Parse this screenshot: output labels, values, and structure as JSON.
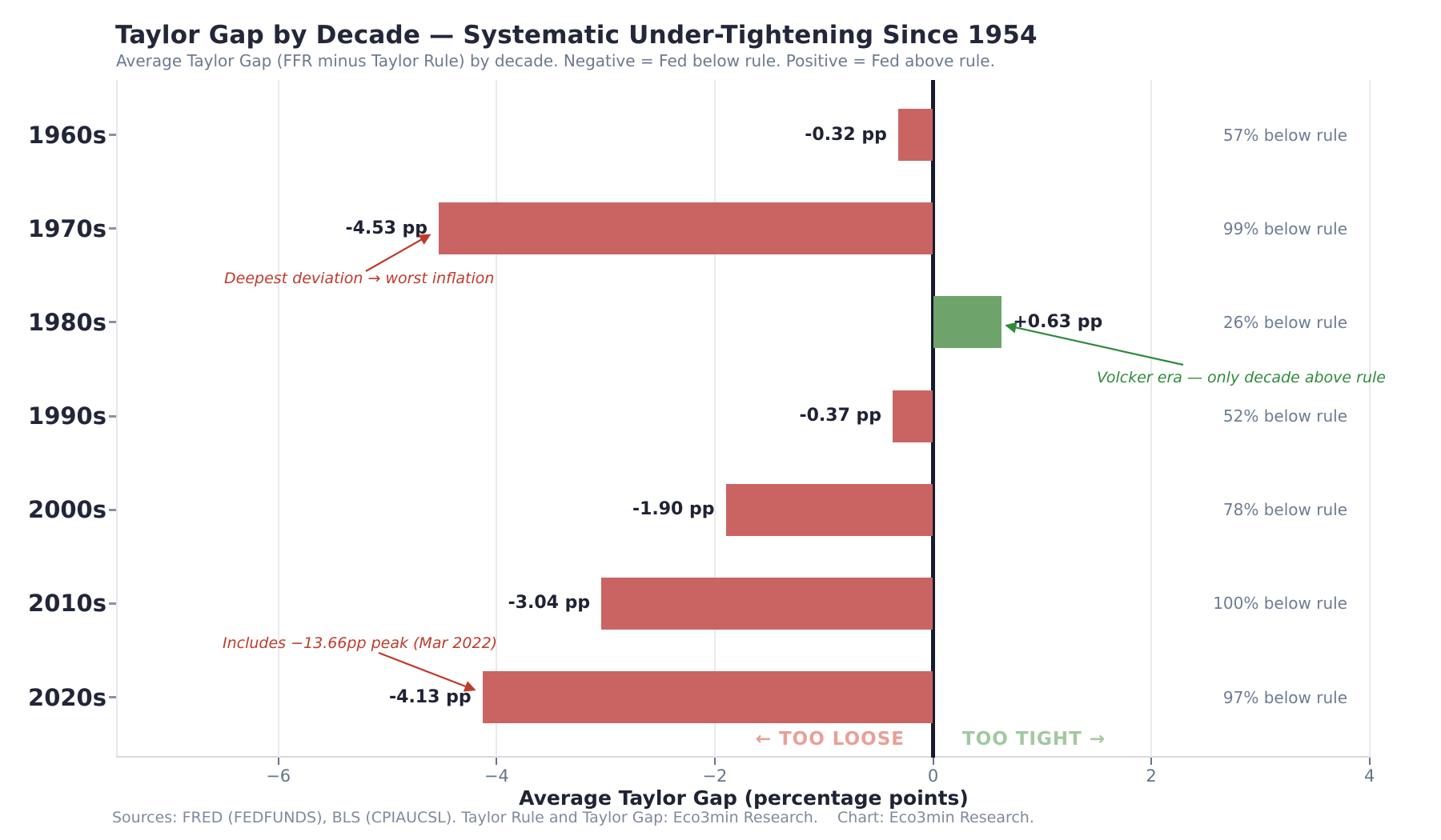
{
  "header": {
    "title": "Taylor Gap by Decade — Systematic Under-Tightening Since 1954",
    "subtitle": "Average Taylor Gap (FFR minus Taylor Rule) by decade. Negative = Fed below rule. Positive = Fed above rule."
  },
  "chart_data": {
    "type": "bar",
    "orientation": "horizontal",
    "categories": [
      "1960s",
      "1970s",
      "1980s",
      "1990s",
      "2000s",
      "2010s",
      "2020s"
    ],
    "values": [
      -0.32,
      -4.53,
      0.63,
      -0.37,
      -1.9,
      -3.04,
      -4.13
    ],
    "bar_labels": [
      "-0.32 pp",
      "-4.53 pp",
      "+0.63 pp",
      "-0.37 pp",
      "-1.90 pp",
      "-3.04 pp",
      "-4.13 pp"
    ],
    "right_labels": [
      "57% below rule",
      "99% below rule",
      "26% below rule",
      "52% below rule",
      "78% below rule",
      "100% below rule",
      "97% below rule"
    ],
    "xlabel": "Average Taylor Gap (percentage points)",
    "x_ticks": [
      -6,
      -4,
      -2,
      0,
      2,
      4
    ],
    "x_tick_labels": [
      "−6",
      "−4",
      "−2",
      "0",
      "2",
      "4"
    ],
    "xlim": [
      -7.49,
      4.02
    ],
    "grid": "vertical-light",
    "legend": "none",
    "colors": {
      "negative_bar": "#ca6462",
      "positive_bar": "#6ea46b",
      "zero_line": "#181b2e",
      "annotation_red": "#bf3a2b",
      "annotation_green": "#2f8b3c",
      "too_loose": "#e99f98",
      "too_tight": "#a2c8a0"
    }
  },
  "annotations": {
    "deepest": "Deepest deviation → worst inflation",
    "volcker": "Volcker era — only decade above rule",
    "peak": "Includes −13.66pp peak (Mar 2022)"
  },
  "zone_labels": {
    "too_loose": "← TOO LOOSE",
    "too_tight": "TOO TIGHT →"
  },
  "footer": {
    "sources": "Sources: FRED (FEDFUNDS), BLS (CPIAUCSL). Taylor Rule and Taylor Gap: Eco3min Research.    Chart: Eco3min Research."
  }
}
